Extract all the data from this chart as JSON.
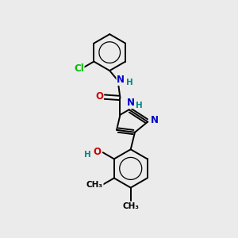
{
  "bg_color": "#ebebeb",
  "bond_color": "#000000",
  "bond_width": 1.4,
  "figsize": [
    3.0,
    3.0
  ],
  "dpi": 100,
  "atom_colors": {
    "N": "#0000cc",
    "O": "#cc0000",
    "Cl": "#00bb00",
    "C": "#000000",
    "H": "#008888"
  },
  "font_size": 8.5,
  "small_font_size": 7.5,
  "xlim": [
    0,
    10
  ],
  "ylim": [
    0,
    10
  ]
}
